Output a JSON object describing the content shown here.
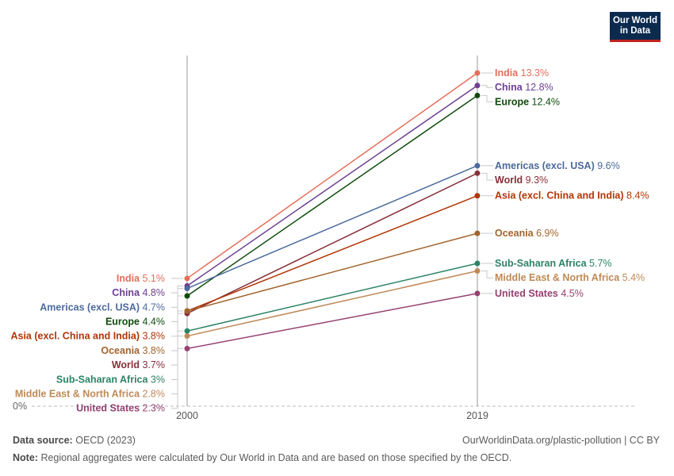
{
  "logo": {
    "line1": "Our World",
    "line2": "in Data"
  },
  "chart_data": {
    "type": "line",
    "subtype": "slope",
    "x": [
      "2000",
      "2019"
    ],
    "y_tick_label": "0%",
    "series": [
      {
        "name": "India",
        "values": [
          5.1,
          13.3
        ],
        "labels": [
          "5.1%",
          "13.3%"
        ],
        "color": "#e56e5a"
      },
      {
        "name": "China",
        "values": [
          4.8,
          12.8
        ],
        "labels": [
          "4.8%",
          "12.8%"
        ],
        "color": "#6d3e91"
      },
      {
        "name": "Europe",
        "values": [
          4.4,
          12.4
        ],
        "labels": [
          "4.4%",
          "12.4%"
        ],
        "color": "#0e4b0b"
      },
      {
        "name": "Americas (excl. USA)",
        "values": [
          4.7,
          9.6
        ],
        "labels": [
          "4.7%",
          "9.6%"
        ],
        "color": "#4c6a9c"
      },
      {
        "name": "World",
        "values": [
          3.7,
          9.3
        ],
        "labels": [
          "3.7%",
          "9.3%"
        ],
        "color": "#883039"
      },
      {
        "name": "Asia (excl. China and India)",
        "values": [
          3.8,
          8.4
        ],
        "labels": [
          "3.8%",
          "8.4%"
        ],
        "color": "#b13507"
      },
      {
        "name": "Oceania",
        "values": [
          3.8,
          6.9
        ],
        "labels": [
          "3.8%",
          "6.9%"
        ],
        "color": "#a2652d"
      },
      {
        "name": "Sub-Saharan Africa",
        "values": [
          3.0,
          5.7
        ],
        "labels": [
          "3%",
          "5.7%"
        ],
        "color": "#2c8465"
      },
      {
        "name": "Middle East & North Africa",
        "values": [
          2.8,
          5.4
        ],
        "labels": [
          "2.8%",
          "5.4%"
        ],
        "color": "#be8a57"
      },
      {
        "name": "United States",
        "values": [
          2.3,
          4.5
        ],
        "labels": [
          "2.3%",
          "4.5%"
        ],
        "color": "#954271"
      }
    ],
    "ylim": [
      0,
      13.3
    ],
    "grid": false
  },
  "footer": {
    "source_label": "Data source:",
    "source_text": "OECD (2023)",
    "credit": "OurWorldinData.org/plastic-pollution | CC BY",
    "note_label": "Note:",
    "note_text": "Regional aggregates were calculated by Our World in Data and are based on those specified by the OECD."
  }
}
